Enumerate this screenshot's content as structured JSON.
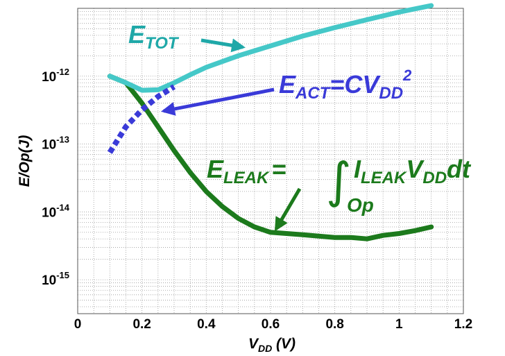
{
  "chart_data": {
    "type": "line",
    "xlabel_main": "V",
    "xlabel_sub": "DD",
    "xlabel_rest": " (V)",
    "ylabel": "E/Op(J)",
    "xlim": [
      0,
      1.2
    ],
    "ylim_log10": [
      -15.5,
      -11.0
    ],
    "y_scale": "log",
    "grid": true,
    "x_ticks": [
      "0",
      "0.2",
      "0.4",
      "0.6",
      "0.8",
      "1",
      "1.2"
    ],
    "x_tick_values": [
      0,
      0.2,
      0.4,
      0.6,
      0.8,
      1.0,
      1.2
    ],
    "y_ticks": [
      {
        "base": "10",
        "exp": "-12",
        "value": 1e-12
      },
      {
        "base": "10",
        "exp": "-13",
        "value": 1e-13
      },
      {
        "base": "10",
        "exp": "-14",
        "value": 1e-14
      },
      {
        "base": "10",
        "exp": "-15",
        "value": 1e-15
      }
    ],
    "series": [
      {
        "name": "E_TOT",
        "color": "#45c8c8",
        "style": "solid",
        "x": [
          0.1,
          0.15,
          0.2,
          0.25,
          0.3,
          0.35,
          0.4,
          0.5,
          0.6,
          0.7,
          0.8,
          0.9,
          1.0,
          1.1
        ],
        "y": [
          1e-12,
          8e-13,
          6.2e-13,
          6.3e-13,
          8e-13,
          1.05e-12,
          1.35e-12,
          2e-12,
          2.8e-12,
          3.9e-12,
          5.2e-12,
          6.8e-12,
          8.8e-12,
          1.1e-11
        ]
      },
      {
        "name": "E_ACT=CV_DD^2",
        "color": "#3a3ad8",
        "style": "dashed",
        "x": [
          0.1,
          0.15,
          0.2,
          0.25,
          0.3
        ],
        "y": [
          7.5e-14,
          1.8e-13,
          3.2e-13,
          5e-13,
          7e-13
        ]
      },
      {
        "name": "E_LEAK",
        "color": "#1c7a1c",
        "style": "solid",
        "x": [
          0.1,
          0.15,
          0.2,
          0.25,
          0.3,
          0.35,
          0.4,
          0.45,
          0.5,
          0.55,
          0.6,
          0.7,
          0.8,
          0.85,
          0.9,
          0.95,
          1.0,
          1.05,
          1.1
        ],
        "y": [
          1e-12,
          8e-13,
          4e-13,
          1.8e-13,
          8e-14,
          3.8e-14,
          2e-14,
          1.2e-14,
          8e-15,
          6e-15,
          5e-15,
          4.6e-15,
          4.2e-15,
          4.2e-15,
          4e-15,
          4.5e-15,
          4.8e-15,
          5.3e-15,
          6e-15
        ]
      }
    ],
    "annotations": {
      "etot": {
        "main": "E",
        "sub": "TOT",
        "color": "#1fa8a8"
      },
      "eact": {
        "main": "E",
        "sub": "ACT",
        "rest": "=CV",
        "sub2": "DD",
        "sup": "2",
        "color": "#3a3ad8"
      },
      "eleak": {
        "main": "E",
        "sub": "LEAK",
        "eq": "=",
        "integral": "∫",
        "i": "I",
        "isub": "LEAK",
        "v": "V",
        "vsub": "DD",
        "dt": "dt",
        "op": "Op",
        "color": "#1c7a1c"
      }
    }
  }
}
